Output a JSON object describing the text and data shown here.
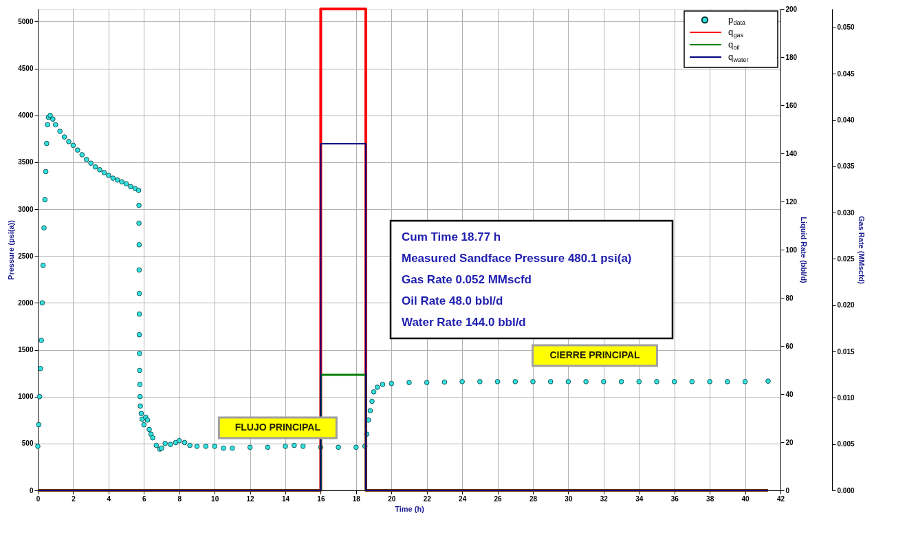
{
  "chart_data": {
    "type": "scatter",
    "xlabel": "Time (h)",
    "ylabel": "Pressure (psi(a))",
    "y2label": "Liquid Rate (bbl/d)",
    "y3label": "Gas Rate (MMscfd)",
    "xlim": [
      0,
      42
    ],
    "xticks": [
      0,
      2,
      4,
      6,
      8,
      10,
      12,
      14,
      16,
      18,
      20,
      22,
      24,
      26,
      28,
      30,
      32,
      34,
      36,
      38,
      40,
      42
    ],
    "ylim": [
      0,
      5135
    ],
    "yticks": [
      0,
      500,
      1000,
      1500,
      2000,
      2500,
      3000,
      3500,
      4000,
      4500,
      5000
    ],
    "y2lim": [
      0,
      200
    ],
    "y2ticks": [
      0,
      20,
      40,
      60,
      80,
      100,
      120,
      140,
      160,
      180,
      200
    ],
    "y3lim": [
      0,
      0.052
    ],
    "y3ticks": [
      {
        "value": 0,
        "label": "0.000"
      },
      {
        "value": 0.005,
        "label": "0.005"
      },
      {
        "value": 0.01,
        "label": "0.010"
      },
      {
        "value": 0.015,
        "label": "0.015"
      },
      {
        "value": 0.02,
        "label": "0.020"
      },
      {
        "value": 0.025,
        "label": "0.025"
      },
      {
        "value": 0.03,
        "label": "0.030"
      },
      {
        "value": 0.035,
        "label": "0.035"
      },
      {
        "value": 0.04,
        "label": "0.040"
      },
      {
        "value": 0.045,
        "label": "0.045"
      },
      {
        "value": 0.05,
        "label": "0.050"
      }
    ],
    "grid": true,
    "legend": "top right",
    "series": [
      {
        "name": "p$_{data}$",
        "marker": "circle",
        "color": "#33e0e0",
        "x": [
          0,
          0.05,
          0.1,
          0.15,
          0.2,
          0.25,
          0.3,
          0.35,
          0.4,
          0.45,
          0.5,
          0.55,
          0.6,
          0.7,
          0.85,
          1.0,
          1.25,
          1.5,
          1.75,
          2.0,
          2.25,
          2.5,
          2.75,
          3.0,
          3.25,
          3.5,
          3.75,
          4.0,
          4.25,
          4.5,
          4.75,
          5.0,
          5.25,
          5.5,
          5.7,
          5.72,
          5.72,
          5.73,
          5.73,
          5.74,
          5.74,
          5.74,
          5.75,
          5.76,
          5.77,
          5.78,
          5.8,
          5.85,
          5.9,
          6.0,
          6.1,
          6.2,
          6.3,
          6.4,
          6.5,
          6.7,
          6.9,
          7.0,
          7.2,
          7.5,
          7.8,
          8.0,
          8.3,
          8.6,
          9.0,
          9.5,
          10.0,
          10.5,
          11.0,
          12.0,
          13.0,
          14.0,
          14.5,
          15.0,
          16.0,
          17.0,
          18.0,
          18.5,
          18.6,
          18.7,
          18.8,
          18.9,
          19.0,
          19.2,
          19.5,
          20.0,
          21.0,
          22.0,
          23.0,
          24.0,
          25.0,
          26.0,
          27.0,
          28.0,
          29.0,
          30.0,
          31.0,
          32.0,
          33.0,
          34.0,
          35.0,
          36.0,
          37.0,
          38.0,
          39.0,
          40.0,
          41.3
        ],
        "values": [
          470,
          700,
          1000,
          1300,
          1600,
          2000,
          2400,
          2800,
          3100,
          3400,
          3700,
          3900,
          3980,
          4000,
          3960,
          3900,
          3830,
          3770,
          3720,
          3680,
          3630,
          3580,
          3530,
          3490,
          3450,
          3420,
          3390,
          3360,
          3330,
          3310,
          3290,
          3270,
          3240,
          3220,
          3200,
          3040,
          2850,
          2620,
          2350,
          2100,
          1880,
          1660,
          1460,
          1280,
          1130,
          1000,
          900,
          820,
          760,
          700,
          780,
          750,
          650,
          600,
          560,
          480,
          440,
          450,
          500,
          490,
          510,
          530,
          510,
          480,
          470,
          470,
          470,
          450,
          450,
          460,
          460,
          470,
          480,
          470,
          460,
          460,
          460,
          470,
          600,
          750,
          850,
          950,
          1050,
          1100,
          1130,
          1140,
          1150,
          1150,
          1155,
          1160,
          1160,
          1160,
          1160,
          1160,
          1160,
          1160,
          1160,
          1160,
          1160,
          1160,
          1160,
          1160,
          1160,
          1160,
          1160,
          1160,
          1165
        ]
      },
      {
        "name": "q$_{gas}$",
        "type": "step",
        "axis": "y3",
        "color": "#ff0000",
        "x": [
          0,
          16.0,
          18.55,
          41.3
        ],
        "values": [
          0,
          0.052,
          0,
          0
        ]
      },
      {
        "name": "q$_{oil}$",
        "type": "step",
        "axis": "y2",
        "color": "#008000",
        "x": [
          0,
          16.0,
          18.55,
          41.3
        ],
        "values": [
          0,
          48,
          0,
          0
        ]
      },
      {
        "name": "q$_{water}$",
        "type": "step",
        "axis": "y2",
        "color": "#000080",
        "x": [
          0,
          16.0,
          18.55,
          41.3
        ],
        "values": [
          0,
          144,
          0,
          0
        ]
      }
    ],
    "annotations": [
      "Cum Time 18.77 h",
      "Measured Sandface Pressure 480.1 psi(a)",
      "Gas Rate 0.052 MMscfd",
      "Oil Rate 48.0 bbl/d",
      "Water Rate 144.0 bbl/d",
      "FLUJO PRINCIPAL",
      "CIERRE PRINCIPAL"
    ]
  }
}
